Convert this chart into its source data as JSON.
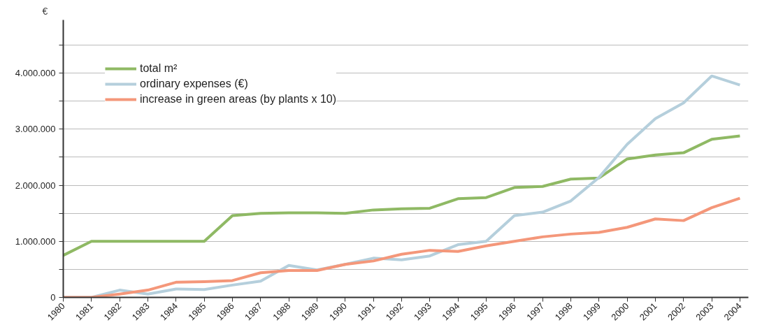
{
  "chart_data": {
    "type": "line",
    "ylabel": "€",
    "x": [
      1980,
      1981,
      1982,
      1983,
      1984,
      1985,
      1986,
      1987,
      1988,
      1989,
      1990,
      1991,
      1992,
      1993,
      1994,
      1995,
      1996,
      1997,
      1998,
      1999,
      2000,
      2001,
      2002,
      2003,
      2004
    ],
    "series": [
      {
        "name": "total m²",
        "color": "#8fb964",
        "values": [
          750000,
          1000000,
          1000000,
          1000000,
          1000000,
          1000000,
          1460000,
          1500000,
          1510000,
          1510000,
          1500000,
          1560000,
          1580000,
          1590000,
          1760000,
          1780000,
          1960000,
          1980000,
          2110000,
          2130000,
          2470000,
          2540000,
          2580000,
          2820000,
          2880000
        ]
      },
      {
        "name": "ordinary expenses (€)",
        "color": "#b5cfdc",
        "values": [
          0,
          0,
          130000,
          60000,
          150000,
          140000,
          220000,
          290000,
          570000,
          490000,
          590000,
          700000,
          670000,
          740000,
          940000,
          1000000,
          1460000,
          1520000,
          1720000,
          2140000,
          2730000,
          3190000,
          3470000,
          3950000,
          3790000
        ]
      },
      {
        "name": "increase in green areas (by plants x 10)",
        "color": "#f4977a",
        "values": [
          0,
          0,
          60000,
          130000,
          270000,
          280000,
          300000,
          440000,
          480000,
          480000,
          590000,
          650000,
          770000,
          840000,
          820000,
          920000,
          1000000,
          1080000,
          1130000,
          1160000,
          1250000,
          1400000,
          1370000,
          1600000,
          1770000
        ]
      }
    ],
    "xlim": [
      1980,
      2004.3
    ],
    "xticks": [
      1980,
      1981,
      1982,
      1983,
      1984,
      1985,
      1986,
      1987,
      1988,
      1989,
      1990,
      1991,
      1992,
      1993,
      1994,
      1995,
      1996,
      1997,
      1998,
      1999,
      2000,
      2001,
      2002,
      2003,
      2004
    ],
    "ylim": [
      0,
      4950000
    ],
    "yticks": [
      0,
      {
        "value": 500000,
        "label": null
      },
      {
        "value": 1000000,
        "label": "1.000.000"
      },
      {
        "value": 1500000,
        "label": null
      },
      {
        "value": 2000000,
        "label": "2.000.000"
      },
      {
        "value": 2500000,
        "label": null
      },
      {
        "value": 3000000,
        "label": "3.000.000"
      },
      {
        "value": 3500000,
        "label": null
      },
      {
        "value": 4000000,
        "label": "4.000.000"
      },
      {
        "value": 4500000,
        "label": null
      }
    ],
    "grid": "y",
    "legend": "top left",
    "marker": "none",
    "line_style": "solid"
  }
}
